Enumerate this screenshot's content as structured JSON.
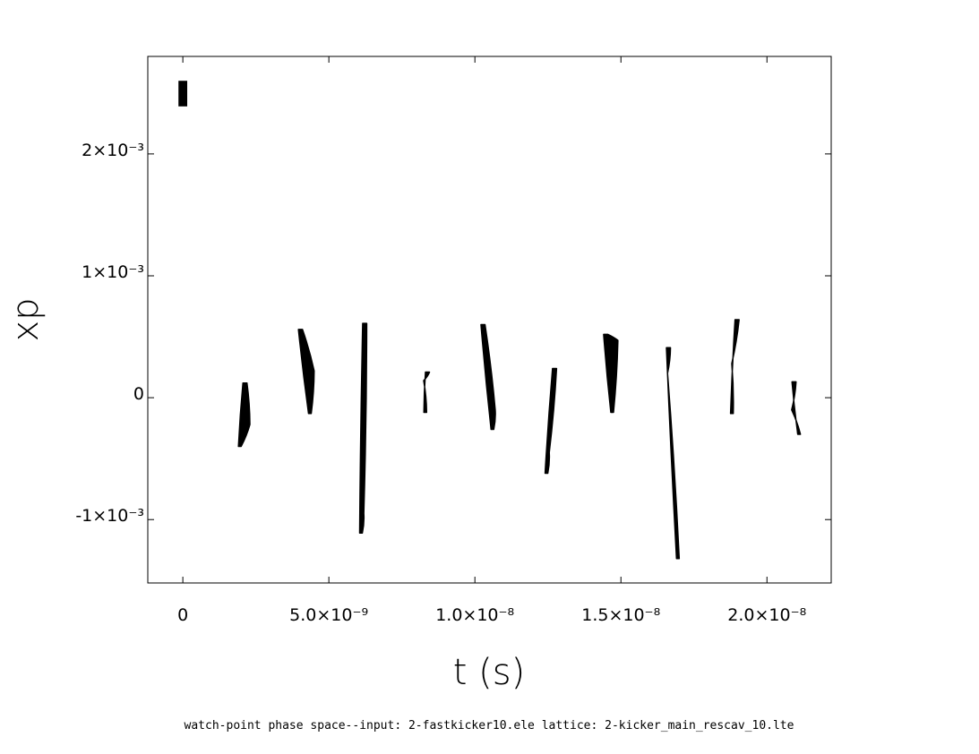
{
  "chart_data": {
    "type": "scatter",
    "title": "",
    "xlabel": "t (s)",
    "ylabel": "xp",
    "caption": "watch-point phase space--input: 2-fastkicker10.ele   lattice: 2-kicker_main_rescav_10.lte",
    "xlim": [
      -1.2e-09,
      2.22e-08
    ],
    "ylim": [
      -0.00152,
      0.0028
    ],
    "grid": false,
    "legend": "none",
    "x_ticks": [
      {
        "value": 0,
        "label": "0"
      },
      {
        "value": 5e-09,
        "label": "5.0×10⁻⁹"
      },
      {
        "value": 1e-08,
        "label": "1.0×10⁻⁸"
      },
      {
        "value": 1.5e-08,
        "label": "1.5×10⁻⁸"
      },
      {
        "value": 2e-08,
        "label": "2.0×10⁻⁸"
      }
    ],
    "y_ticks": [
      {
        "value": -0.001,
        "label": "-1×10⁻³"
      },
      {
        "value": 0,
        "label": "0"
      },
      {
        "value": 0.001,
        "label": "1×10⁻³"
      },
      {
        "value": 0.002,
        "label": "2×10⁻³"
      }
    ],
    "series": [
      {
        "color": "#000000",
        "bunches": [
          {
            "t_range": [
              -1.5e-10,
              1.5e-10
            ],
            "xp_range": [
              0.00239,
              0.0026
            ],
            "shape": "block"
          },
          {
            "t_top": 2.15e-09,
            "xp_top": 0.00012,
            "t_min": 1.95e-09,
            "xp_min": -0.0004,
            "t_end": 2.25e-09,
            "xp_end": -0.00022
          },
          {
            "t_top": 4.05e-09,
            "xp_top": 0.00056,
            "t_min": 4.35e-09,
            "xp_min": -0.00013,
            "t_end": 4.45e-09,
            "xp_end": 0.00022
          },
          {
            "t_top": 6.25e-09,
            "xp_top": 0.00061,
            "t_min": 6.1e-09,
            "xp_min": -0.00111,
            "t_end": 6.15e-09,
            "xp_end": -0.00095
          },
          {
            "t_top": 8.4e-09,
            "xp_top": 0.00021,
            "t_min": 8.3e-09,
            "xp_min": -0.00012,
            "t_end": 8.2e-09,
            "xp_end": 0.00014
          },
          {
            "t_top": 1.03e-08,
            "xp_top": 0.0006,
            "t_min": 1.06e-08,
            "xp_min": -0.00026,
            "t_end": 1.065e-08,
            "xp_end": -0.0001
          },
          {
            "t_top": 1.275e-08,
            "xp_top": 0.00024,
            "t_min": 1.245e-08,
            "xp_min": -0.00062,
            "t_end": 1.25e-08,
            "xp_end": -0.00045
          },
          {
            "t_top": 1.45e-08,
            "xp_top": 0.00052,
            "t_min": 1.47e-08,
            "xp_min": -0.00012,
            "t_end": 1.485e-08,
            "xp_end": 0.00047
          },
          {
            "t_top": 1.665e-08,
            "xp_top": 0.00041,
            "t_min": 1.695e-08,
            "xp_min": -0.00132,
            "t_end": 1.655e-08,
            "xp_end": 0.0002
          },
          {
            "t_top": 1.9e-08,
            "xp_top": 0.00064,
            "t_min": 1.88e-08,
            "xp_min": -0.00013,
            "t_end": 1.875e-08,
            "xp_end": 0.00028
          },
          {
            "t_top": 2.095e-08,
            "xp_top": 0.00013,
            "t_min": 2.11e-08,
            "xp_min": -0.0003,
            "t_end": 2.08e-08,
            "xp_end": -0.0001
          }
        ]
      }
    ]
  }
}
